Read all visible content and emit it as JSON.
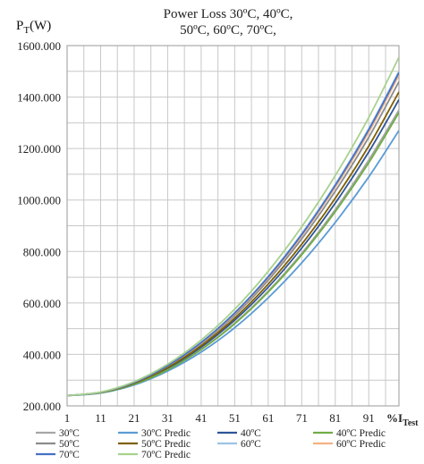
{
  "chart_data": {
    "type": "line",
    "title_line1": "Power Loss 30ºC, 40ºC,",
    "title_line2": "50ºC, 60ºC, 70ºC,",
    "ylabel_main": "P",
    "ylabel_sub": "T",
    "ylabel_unit": "(W)",
    "xlabel_main": "%I",
    "xlabel_sub": "Test",
    "xlim": [
      1,
      100
    ],
    "ylim": [
      200,
      1600
    ],
    "y_ticks": [
      "200.000",
      "400.000",
      "600.000",
      "800.000",
      "1000.000",
      "1200.000",
      "1400.000",
      "1600.000"
    ],
    "x_ticks": [
      "1",
      "11",
      "21",
      "31",
      "41",
      "51",
      "61",
      "71",
      "81",
      "91"
    ],
    "grid": true,
    "legend_position": "bottom",
    "series": [
      {
        "name": "30ºC",
        "color": "#a6a6a6",
        "x": [
          1,
          11,
          21,
          31,
          41,
          51,
          61,
          71,
          81,
          91,
          100
        ],
        "values": [
          240,
          251,
          285,
          342,
          420,
          522,
          646,
          793,
          963,
          1156,
          1350
        ]
      },
      {
        "name": "30ºC Predic",
        "color": "#5b9bd5",
        "x": [
          1,
          11,
          21,
          31,
          41,
          51,
          61,
          71,
          81,
          91,
          100
        ],
        "values": [
          240,
          250,
          281,
          335,
          409,
          504,
          620,
          756,
          913,
          1090,
          1270
        ]
      },
      {
        "name": "40ºC",
        "color": "#2e5597",
        "x": [
          1,
          11,
          21,
          31,
          41,
          51,
          61,
          71,
          81,
          91,
          100
        ],
        "values": [
          240,
          252,
          287,
          346,
          428,
          533,
          661,
          813,
          988,
          1187,
          1390
        ]
      },
      {
        "name": "40ºC Predic",
        "color": "#70ad47",
        "x": [
          1,
          11,
          21,
          31,
          41,
          51,
          61,
          71,
          81,
          91,
          100
        ],
        "values": [
          240,
          251,
          284,
          340,
          419,
          519,
          642,
          787,
          955,
          1145,
          1340
        ]
      },
      {
        "name": "50ºC",
        "color": "#8c8c8c",
        "x": [
          1,
          11,
          21,
          31,
          41,
          51,
          61,
          71,
          81,
          91,
          100
        ],
        "values": [
          240,
          253,
          290,
          353,
          440,
          552,
          688,
          849,
          1034,
          1244,
          1460
        ]
      },
      {
        "name": "50ºC Predic",
        "color": "#7f5f00",
        "x": [
          1,
          11,
          21,
          31,
          41,
          51,
          61,
          71,
          81,
          91,
          100
        ],
        "values": [
          240,
          252,
          288,
          349,
          433,
          541,
          673,
          828,
          1007,
          1210,
          1420
        ]
      },
      {
        "name": "60ºC",
        "color": "#9dc3e6",
        "x": [
          1,
          11,
          21,
          31,
          41,
          51,
          61,
          71,
          81,
          91,
          100
        ],
        "values": [
          240,
          253,
          292,
          357,
          447,
          562,
          703,
          869,
          1061,
          1278,
          1500
        ]
      },
      {
        "name": "60ºC Predic",
        "color": "#f4b183",
        "x": [
          1,
          11,
          21,
          31,
          41,
          51,
          61,
          71,
          81,
          91,
          100
        ],
        "values": [
          240,
          253,
          291,
          355,
          444,
          558,
          697,
          861,
          1050,
          1264,
          1485
        ]
      },
      {
        "name": "70ºC",
        "color": "#4472c4",
        "x": [
          1,
          11,
          21,
          31,
          41,
          51,
          61,
          71,
          81,
          91,
          100
        ],
        "values": [
          240,
          253,
          291,
          356,
          446,
          561,
          701,
          866,
          1057,
          1273,
          1495
        ]
      },
      {
        "name": "70ºC Predic",
        "color": "#a9d18e",
        "x": [
          1,
          11,
          21,
          31,
          41,
          51,
          61,
          71,
          81,
          91,
          100
        ],
        "values": [
          240,
          254,
          294,
          362,
          456,
          576,
          723,
          896,
          1095,
          1321,
          1555
        ]
      }
    ]
  }
}
